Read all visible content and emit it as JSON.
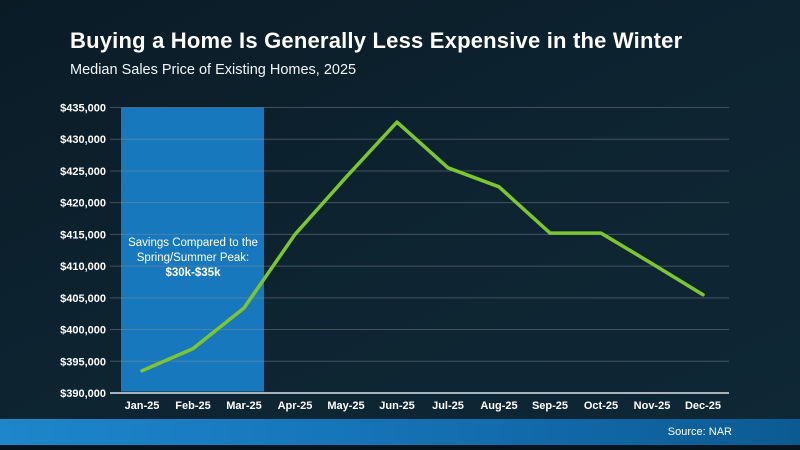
{
  "header": {
    "title": "Buying a Home Is Generally Less Expensive in the Winter",
    "subtitle": "Median Sales Price of Existing Homes, 2025"
  },
  "chart_data": {
    "type": "line",
    "title": "Buying a Home Is Generally Less Expensive in the Winter",
    "subtitle": "Median Sales Price of Existing Homes, 2025",
    "categories": [
      "Jan-25",
      "Feb-25",
      "Mar-25",
      "Apr-25",
      "May-25",
      "Jun-25",
      "Jul-25",
      "Aug-25",
      "Sep-25",
      "Oct-25",
      "Nov-25",
      "Dec-25"
    ],
    "series": [
      {
        "name": "Median Sales Price of Existing Homes",
        "values": [
          393500,
          397000,
          403400,
          415000,
          424000,
          432700,
          425500,
          422500,
          415200,
          415200,
          410400,
          405500
        ]
      }
    ],
    "xlabel": "",
    "ylabel": "",
    "ylim": [
      390000,
      435000
    ],
    "ytick_step": 5000,
    "ytick_labels": [
      "$390,000",
      "$395,000",
      "$400,000",
      "$405,000",
      "$410,000",
      "$415,000",
      "$420,000",
      "$425,000",
      "$430,000",
      "$435,000"
    ],
    "grid": true,
    "legend": false,
    "line_color": "#7ec62e",
    "highlight": {
      "color": "#1878be",
      "covers_categories": [
        "Jan-25",
        "Feb-25",
        "Mar-25"
      ],
      "annotation_text": "Savings Compared to the Spring/Summer Peak:",
      "annotation_bold": "$30k-$35k"
    }
  },
  "footer": {
    "source": "Source: NAR"
  },
  "colors": {
    "background": "#0d2330",
    "highlight_blue": "#1878be",
    "line_green": "#7ec62e",
    "footer_gradient_left": "#1e86ca",
    "footer_gradient_right": "#0c5a92",
    "text": "#ffffff"
  }
}
